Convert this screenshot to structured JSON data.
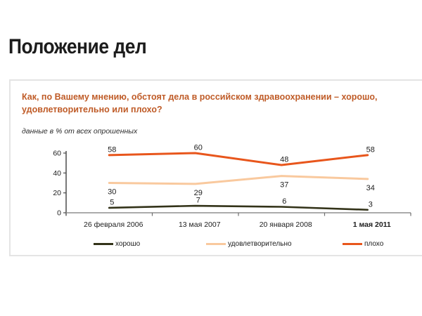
{
  "slide": {
    "title": "Положение дел"
  },
  "panel": {
    "question": "Как, по Вашему мнению, обстоят дела в российском здравоохранении – хорошо, удовлетворительно или плохо?",
    "note": "данные в % от всех опрошенных"
  },
  "colors": {
    "title_text": "#1c1c1c",
    "question_text": "#bf5b27",
    "panel_border": "#e4e4e4",
    "x_axis": "#8f8f8f",
    "y_axis": "#4a4a4a",
    "series_good": "#333319",
    "series_satisfactory": "#f9c99e",
    "series_bad": "#e8561c"
  },
  "chart_data": {
    "type": "line",
    "title": "Как, по Вашему мнению, обстоят дела в российском здравоохранении – хорошо, удовлетворительно или плохо?",
    "subtitle": "данные в % от всех опрошенных",
    "categories": [
      "26 февраля 2006",
      "13 мая 2007",
      "20 января 2008",
      "1 мая 2011"
    ],
    "bold_categories": [
      "1 мая 2011"
    ],
    "series": [
      {
        "name": "хорошо",
        "values": [
          5,
          7,
          6,
          3
        ],
        "color": "#333319",
        "labels": "above"
      },
      {
        "name": "удовлетворительно",
        "values": [
          30,
          29,
          37,
          34
        ],
        "color": "#f9c99e",
        "labels": "below"
      },
      {
        "name": "плохо",
        "values": [
          58,
          60,
          48,
          58
        ],
        "color": "#e8561c",
        "labels": "above"
      }
    ],
    "y_ticks": [
      0,
      20,
      40,
      60
    ],
    "ylim": [
      0,
      60
    ],
    "grid": false,
    "legend_position": "bottom"
  }
}
